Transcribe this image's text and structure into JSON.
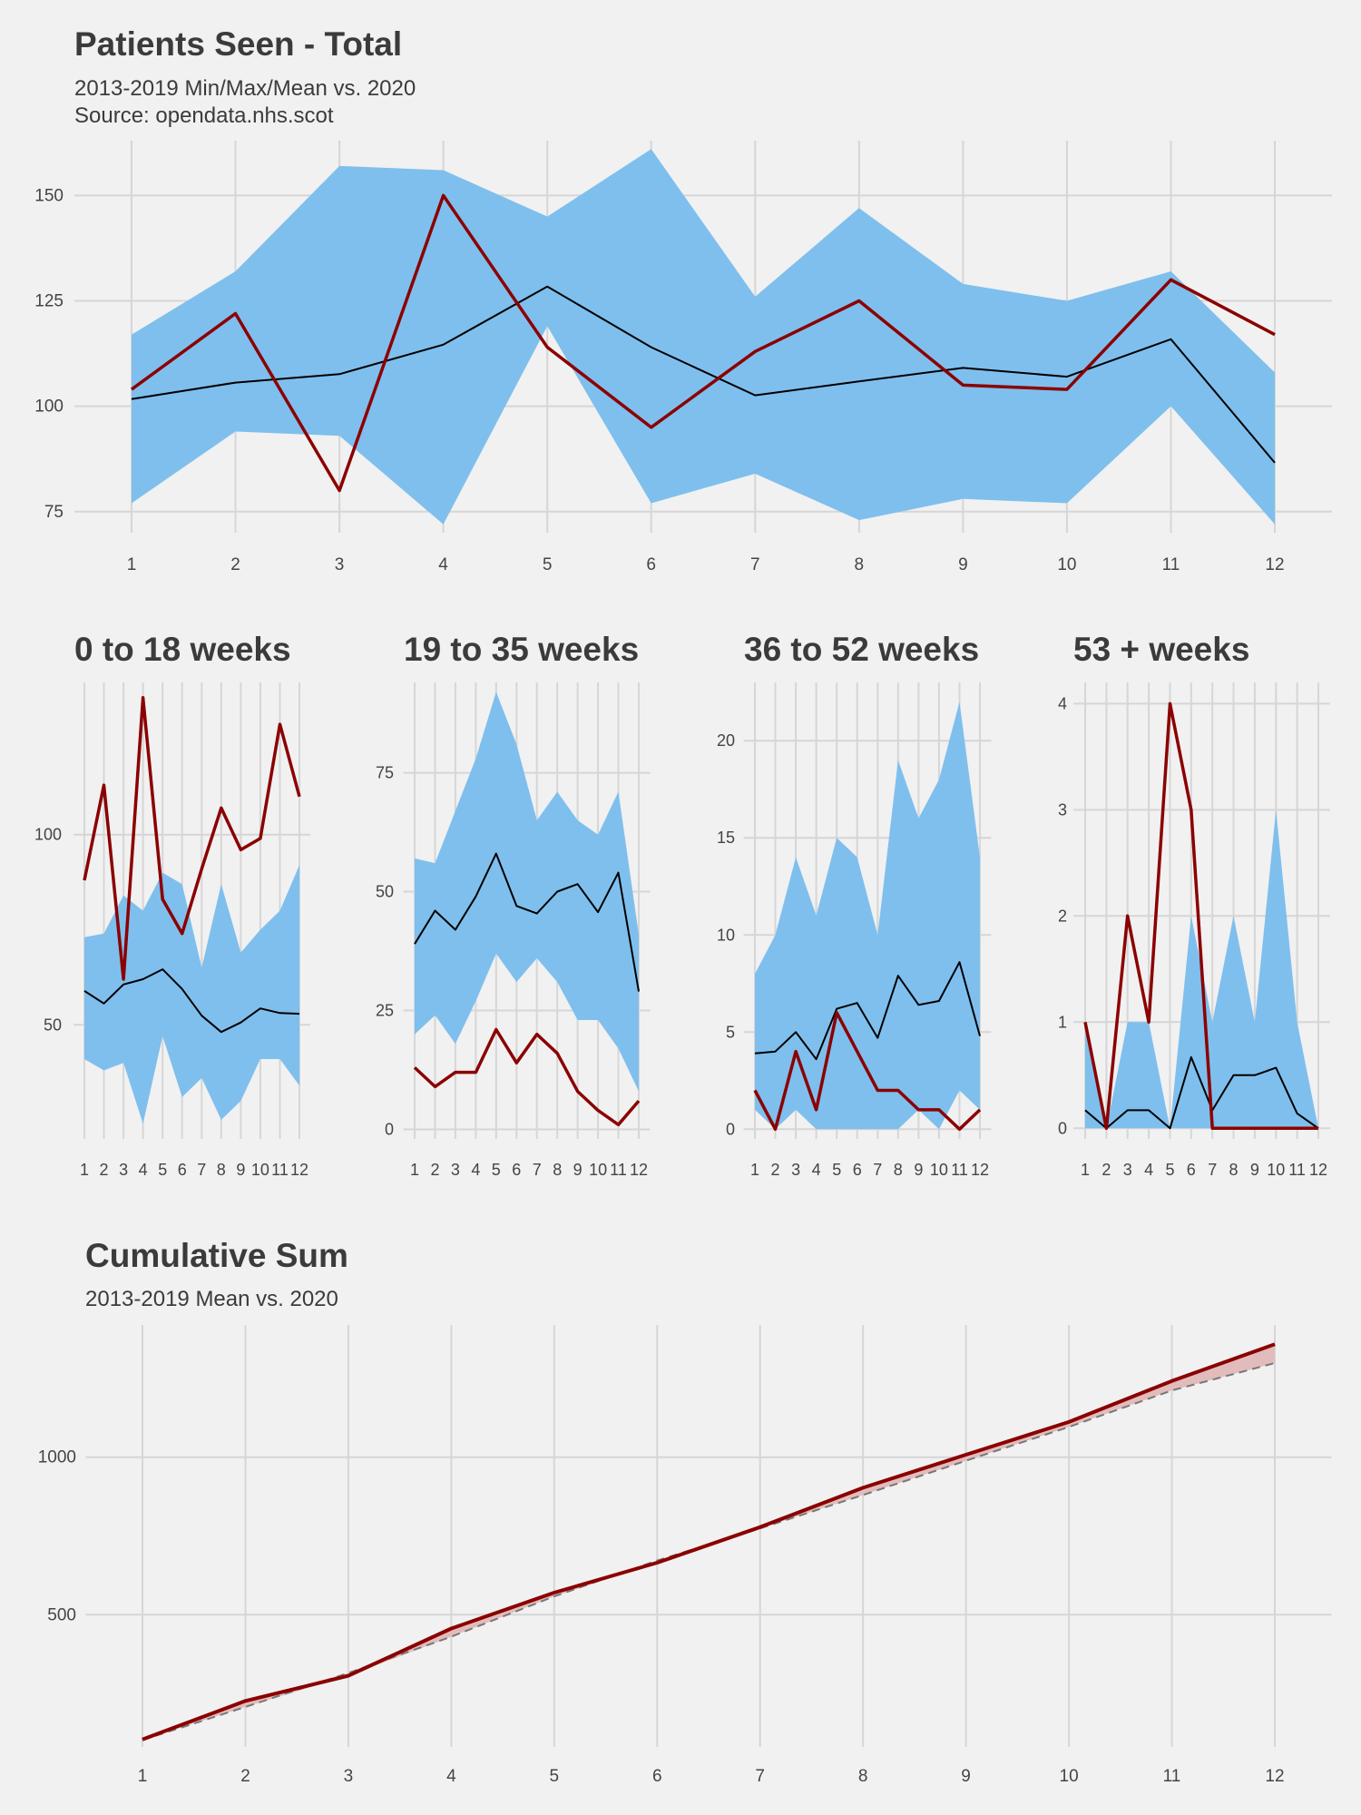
{
  "colors": {
    "background": "#f1f1f1",
    "band": "#7fbfed",
    "current": "#8b0000",
    "mean": "#000000",
    "grid": "#d6d6d6",
    "cum_fill": "#e2bcbc",
    "dashed": "#777777"
  },
  "chart_data": [
    {
      "id": "total",
      "type": "area",
      "title": "Patients Seen - Total",
      "subtitle": [
        "2013-2019 Min/Max/Mean vs. 2020",
        "Source: opendata.nhs.scot"
      ],
      "x": [
        1,
        2,
        3,
        4,
        5,
        6,
        7,
        8,
        9,
        10,
        11,
        12
      ],
      "ylim": [
        70,
        163
      ],
      "yticks": [
        75,
        100,
        125,
        150
      ],
      "band_min": [
        77,
        94,
        93,
        72,
        119,
        77,
        84,
        73,
        78,
        77,
        100,
        72
      ],
      "band_max": [
        117,
        132,
        157,
        156,
        145,
        161,
        126,
        147,
        129,
        125,
        132,
        108
      ],
      "mean": [
        101.7,
        105.6,
        107.6,
        114.6,
        128.4,
        114.0,
        102.6,
        105.9,
        109.1,
        107.0,
        115.9,
        86.6
      ],
      "current": [
        104,
        122,
        80,
        150,
        114,
        95,
        113,
        125,
        105,
        104,
        130,
        117
      ]
    },
    {
      "id": "w0_18",
      "type": "area",
      "title": "0 to 18 weeks",
      "x": [
        1,
        2,
        3,
        4,
        5,
        6,
        7,
        8,
        9,
        10,
        11,
        12
      ],
      "ylim": [
        20,
        140
      ],
      "yticks": [
        50,
        100
      ],
      "band_min": [
        41,
        38,
        40,
        24,
        47,
        31,
        36,
        25,
        30,
        41,
        41,
        34
      ],
      "band_max": [
        73,
        74,
        84,
        80,
        90,
        87,
        65,
        87,
        69,
        75,
        80,
        92
      ],
      "mean": [
        58.9,
        55.6,
        60.6,
        62.0,
        64.6,
        59.4,
        52.4,
        48.1,
        50.6,
        54.3,
        53.1,
        52.9
      ],
      "current": [
        88,
        113,
        62,
        136,
        83,
        74,
        91,
        107,
        96,
        99,
        129,
        110
      ]
    },
    {
      "id": "w19_35",
      "type": "area",
      "title": "19 to 35 weeks",
      "x": [
        1,
        2,
        3,
        4,
        5,
        6,
        7,
        8,
        9,
        10,
        11,
        12
      ],
      "ylim": [
        -2,
        94
      ],
      "yticks": [
        0,
        25,
        50,
        75
      ],
      "band_min": [
        20,
        24,
        18,
        27,
        37,
        31,
        36,
        31,
        23,
        23,
        17,
        8
      ],
      "band_max": [
        57,
        56,
        67,
        78,
        92,
        81,
        65,
        71,
        65,
        62,
        71,
        41
      ],
      "mean": [
        39,
        46,
        42,
        49,
        58,
        47,
        45.4,
        50,
        51.6,
        45.7,
        54,
        29
      ],
      "current": [
        13,
        9,
        12,
        12,
        21,
        14,
        20,
        16,
        8,
        4,
        1,
        6
      ]
    },
    {
      "id": "w36_52",
      "type": "area",
      "title": "36 to 52 weeks",
      "x": [
        1,
        2,
        3,
        4,
        5,
        6,
        7,
        8,
        9,
        10,
        11,
        12
      ],
      "ylim": [
        -0.5,
        23
      ],
      "yticks": [
        0,
        5,
        10,
        15,
        20
      ],
      "band_min": [
        1,
        0,
        1,
        0,
        0,
        0,
        0,
        0,
        1,
        0,
        2,
        1
      ],
      "band_max": [
        8,
        10,
        14,
        11,
        15,
        14,
        10,
        19,
        16,
        18,
        22,
        14
      ],
      "mean": [
        3.9,
        4.0,
        5.0,
        3.6,
        6.2,
        6.5,
        4.7,
        7.9,
        6.4,
        6.6,
        8.6,
        4.8
      ],
      "current": [
        2,
        0,
        4,
        1,
        6,
        4,
        2,
        2,
        1,
        1,
        0,
        1
      ]
    },
    {
      "id": "w53",
      "type": "area",
      "title": "53 + weeks",
      "x": [
        1,
        2,
        3,
        4,
        5,
        6,
        7,
        8,
        9,
        10,
        11,
        12
      ],
      "ylim": [
        -0.1,
        4.2
      ],
      "yticks": [
        0,
        1,
        2,
        3,
        4
      ],
      "band_min": [
        0,
        0,
        0,
        0,
        0,
        0,
        0,
        0,
        0,
        0,
        0,
        0
      ],
      "band_max": [
        1,
        0,
        1,
        1,
        0,
        2,
        1,
        2,
        1,
        3,
        1,
        0
      ],
      "mean": [
        0.17,
        0,
        0.17,
        0.17,
        0,
        0.67,
        0.17,
        0.5,
        0.5,
        0.57,
        0.14,
        0
      ],
      "current": [
        1,
        0,
        2,
        1,
        4,
        3,
        0,
        0,
        0,
        0,
        0,
        0
      ]
    },
    {
      "id": "cumsum",
      "type": "line",
      "title": "Cumulative Sum",
      "subtitle": [
        "2013-2019 Mean vs. 2020"
      ],
      "x": [
        1,
        2,
        3,
        4,
        5,
        6,
        7,
        8,
        9,
        10,
        11,
        12
      ],
      "ylim": [
        80,
        1420
      ],
      "yticks": [
        500,
        1000
      ],
      "mean_cum": [
        102,
        207,
        315,
        430,
        558,
        672,
        774,
        880,
        989,
        1096,
        1212,
        1299
      ],
      "current_cum": [
        104,
        226,
        306,
        456,
        570,
        665,
        778,
        903,
        1008,
        1112,
        1242,
        1359
      ]
    }
  ]
}
